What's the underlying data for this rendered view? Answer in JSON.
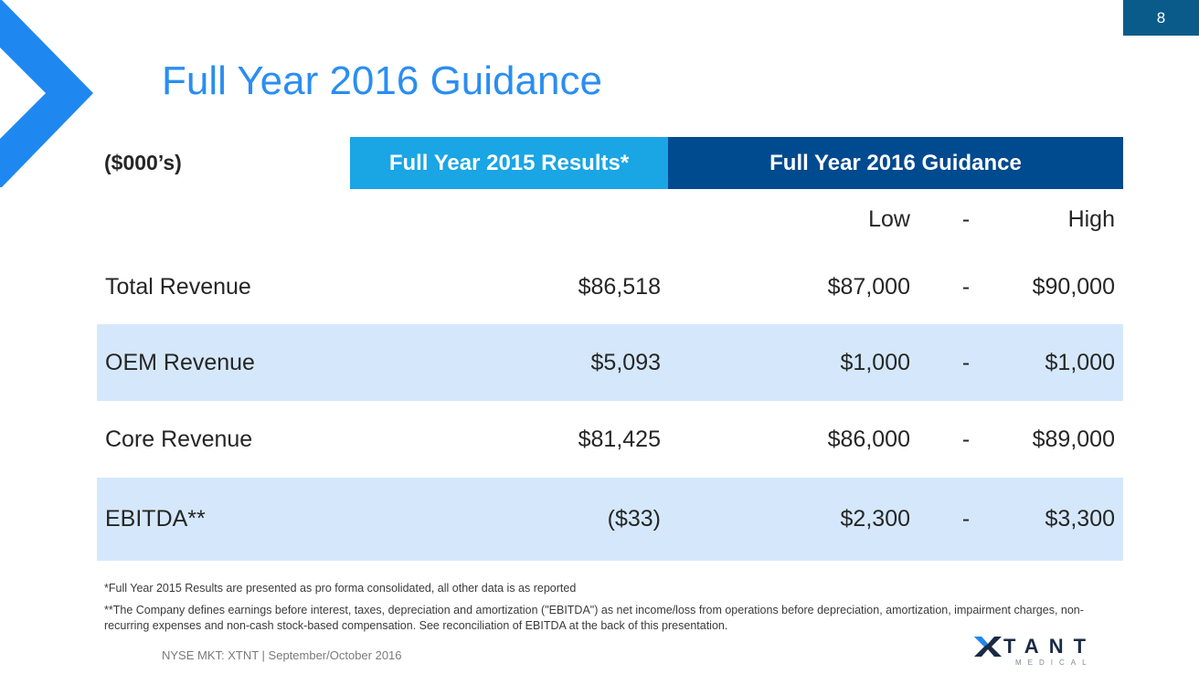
{
  "slide": {
    "page_number": "8",
    "title": "Full Year 2016 Guidance",
    "footer": "NYSE MKT: XTNT | September/October 2016"
  },
  "table": {
    "units_label": "($000’s)",
    "header_2015": "Full Year 2015 Results*",
    "header_2016": "Full Year 2016 Guidance",
    "subheader": {
      "low": "Low",
      "dash": "-",
      "high": "High"
    },
    "rows": [
      {
        "label": "Total Revenue",
        "fy2015": "$86,518",
        "low": "$87,000",
        "dash": "-",
        "high": "$90,000"
      },
      {
        "label": "OEM Revenue",
        "fy2015": "$5,093",
        "low": "$1,000",
        "dash": "-",
        "high": "$1,000"
      },
      {
        "label": "Core Revenue",
        "fy2015": "$81,425",
        "low": "$86,000",
        "dash": "-",
        "high": "$89,000"
      },
      {
        "label": "EBITDA**",
        "fy2015": "($33)",
        "low": "$2,300",
        "dash": "-",
        "high": "$3,300"
      }
    ]
  },
  "notes": {
    "note1": "*Full Year 2015 Results are presented as pro forma consolidated, all other data is as reported",
    "note2": "**The Company defines earnings before interest, taxes, depreciation and amortization (\"EBITDA\") as net income/loss from operations before depreciation, amortization, impairment charges, non-recurring expenses and non-cash stock-based compensation. See reconciliation of EBITDA at the back of this presentation."
  },
  "logo": {
    "wordmark": "TANT",
    "subtitle": "MEDICAL"
  },
  "colors": {
    "title": "#2a8ef0",
    "chevron": "#1e88f0",
    "header_2015_bg": "#1aa5e5",
    "header_2016_bg": "#004a8f",
    "row_shade": "#d5e8fb",
    "page_number_bg": "#0b5b8a"
  }
}
